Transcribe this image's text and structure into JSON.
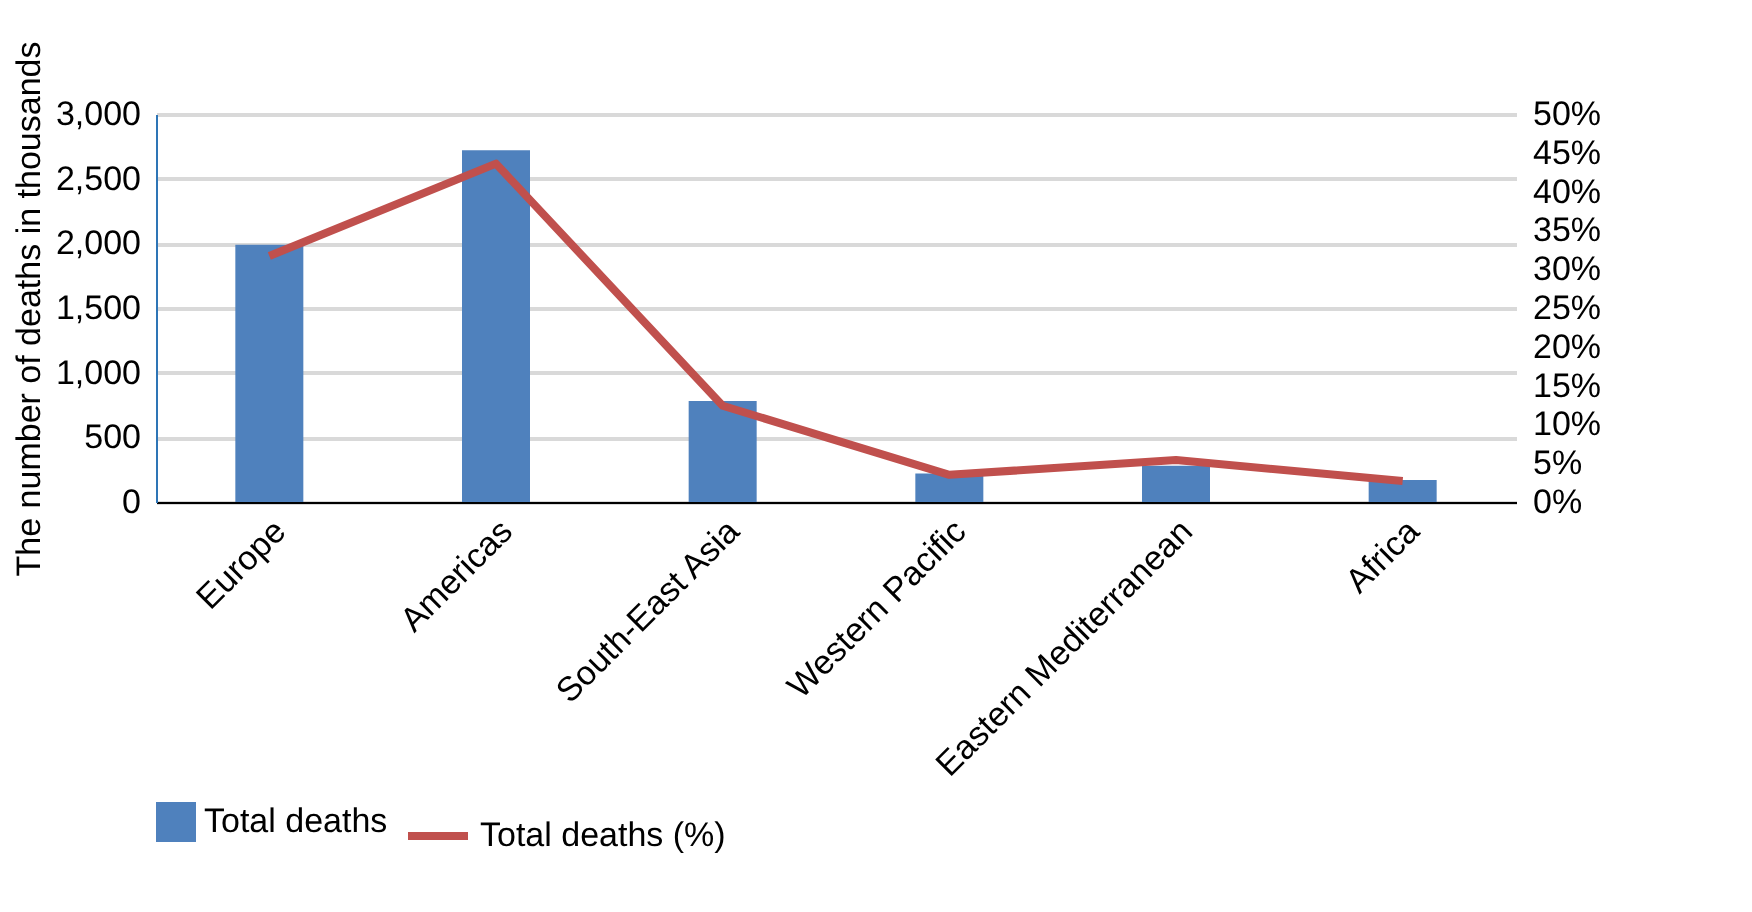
{
  "chart_data": {
    "type": "bar",
    "ylabel": "The number of deaths in thousands",
    "categories": [
      "Europe",
      "Americas",
      "South-East Asia",
      "Western Pacific",
      "Eastern Mediterranean",
      "Africa"
    ],
    "series": [
      {
        "name": "Total deaths",
        "color": "#4f81bd",
        "values": [
          1990,
          2720,
          780,
          220,
          280,
          170
        ]
      },
      {
        "name": "Total deaths (%)",
        "type": "line",
        "axis": "y2",
        "color": "#c0504d",
        "values": [
          31.7,
          43.6,
          12.4,
          3.5,
          5.4,
          2.7
        ]
      }
    ],
    "ylim": [
      0,
      3000
    ],
    "yticks": [
      0,
      500,
      {
        "value": 1000,
        "label": "1,000"
      },
      {
        "value": 1500,
        "label": "1,500"
      },
      {
        "value": 2000,
        "label": "2,000"
      },
      {
        "value": 2500,
        "label": "2,500"
      },
      {
        "value": 3000,
        "label": "3,000"
      }
    ],
    "y2lim": [
      0,
      50
    ],
    "y2ticks": [
      {
        "value": 0,
        "label": "0%"
      },
      {
        "value": 5,
        "label": "5%"
      },
      {
        "value": 10,
        "label": "10%"
      },
      {
        "value": 15,
        "label": "15%"
      },
      {
        "value": 20,
        "label": "20%"
      },
      {
        "value": 25,
        "label": "25%"
      },
      {
        "value": 30,
        "label": "30%"
      },
      {
        "value": 35,
        "label": "35%"
      },
      {
        "value": 40,
        "label": "40%"
      },
      {
        "value": 45,
        "label": "45%"
      },
      {
        "value": 50,
        "label": "50%"
      }
    ],
    "grid": "y",
    "legend": "bottom",
    "marker": "none",
    "line_style": "solid"
  }
}
